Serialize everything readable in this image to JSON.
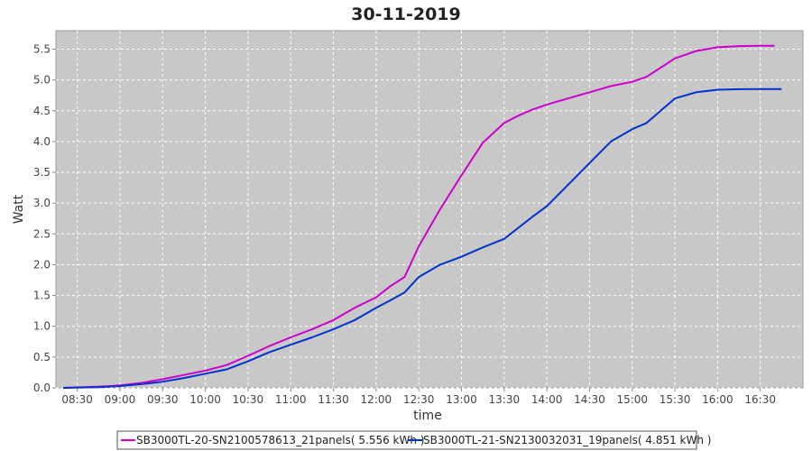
{
  "chart_data": {
    "type": "line",
    "title": "30-11-2019",
    "xlabel": "time",
    "ylabel": "Watt",
    "ylim": [
      0,
      5.8
    ],
    "xlim": [
      "08:15",
      "17:00"
    ],
    "grid": true,
    "legend_position": "bottom",
    "x_ticks": [
      "08:30",
      "09:00",
      "09:30",
      "10:00",
      "10:30",
      "11:00",
      "11:30",
      "12:00",
      "12:30",
      "13:00",
      "13:30",
      "14:00",
      "14:30",
      "15:00",
      "15:30",
      "16:00",
      "16:30"
    ],
    "y_ticks": [
      "0.0",
      "0.5",
      "1.0",
      "1.5",
      "2.0",
      "2.5",
      "3.0",
      "3.5",
      "4.0",
      "4.5",
      "5.0",
      "5.5"
    ],
    "series": [
      {
        "name": "SB3000TL-20-SN2100578613_21panels( 5.556 kWh )",
        "color": "#cc00cc",
        "x": [
          "08:20",
          "08:45",
          "09:00",
          "09:15",
          "09:30",
          "09:45",
          "10:00",
          "10:15",
          "10:30",
          "10:45",
          "11:00",
          "11:15",
          "11:30",
          "11:45",
          "12:00",
          "12:10",
          "12:20",
          "12:30",
          "12:45",
          "13:00",
          "13:15",
          "13:30",
          "13:40",
          "13:50",
          "14:00",
          "14:15",
          "14:30",
          "14:45",
          "15:00",
          "15:10",
          "15:20",
          "15:30",
          "15:45",
          "16:00",
          "16:15",
          "16:30",
          "16:40"
        ],
        "values": [
          0.0,
          0.02,
          0.04,
          0.08,
          0.14,
          0.21,
          0.28,
          0.37,
          0.52,
          0.68,
          0.82,
          0.95,
          1.1,
          1.3,
          1.47,
          1.65,
          1.8,
          2.3,
          2.9,
          3.45,
          3.98,
          4.3,
          4.42,
          4.52,
          4.6,
          4.7,
          4.8,
          4.9,
          4.97,
          5.05,
          5.2,
          5.35,
          5.47,
          5.53,
          5.55,
          5.556,
          5.556
        ]
      },
      {
        "name": "SB3000TL-21-SN2130032031_19panels( 4.851 kWh )",
        "color": "#0033cc",
        "x": [
          "08:20",
          "08:45",
          "09:00",
          "09:15",
          "09:30",
          "09:45",
          "10:00",
          "10:15",
          "10:30",
          "10:45",
          "11:00",
          "11:15",
          "11:30",
          "11:45",
          "12:00",
          "12:10",
          "12:20",
          "12:30",
          "12:45",
          "13:00",
          "13:15",
          "13:30",
          "13:40",
          "13:50",
          "14:00",
          "14:15",
          "14:30",
          "14:45",
          "15:00",
          "15:10",
          "15:20",
          "15:30",
          "15:45",
          "16:00",
          "16:15",
          "16:30",
          "16:45"
        ],
        "values": [
          0.0,
          0.01,
          0.03,
          0.06,
          0.1,
          0.16,
          0.23,
          0.3,
          0.43,
          0.58,
          0.7,
          0.82,
          0.95,
          1.1,
          1.3,
          1.42,
          1.55,
          1.8,
          2.0,
          2.13,
          2.28,
          2.42,
          2.6,
          2.78,
          2.95,
          3.3,
          3.65,
          4.0,
          4.2,
          4.3,
          4.5,
          4.7,
          4.8,
          4.84,
          4.85,
          4.851,
          4.851
        ]
      }
    ]
  }
}
